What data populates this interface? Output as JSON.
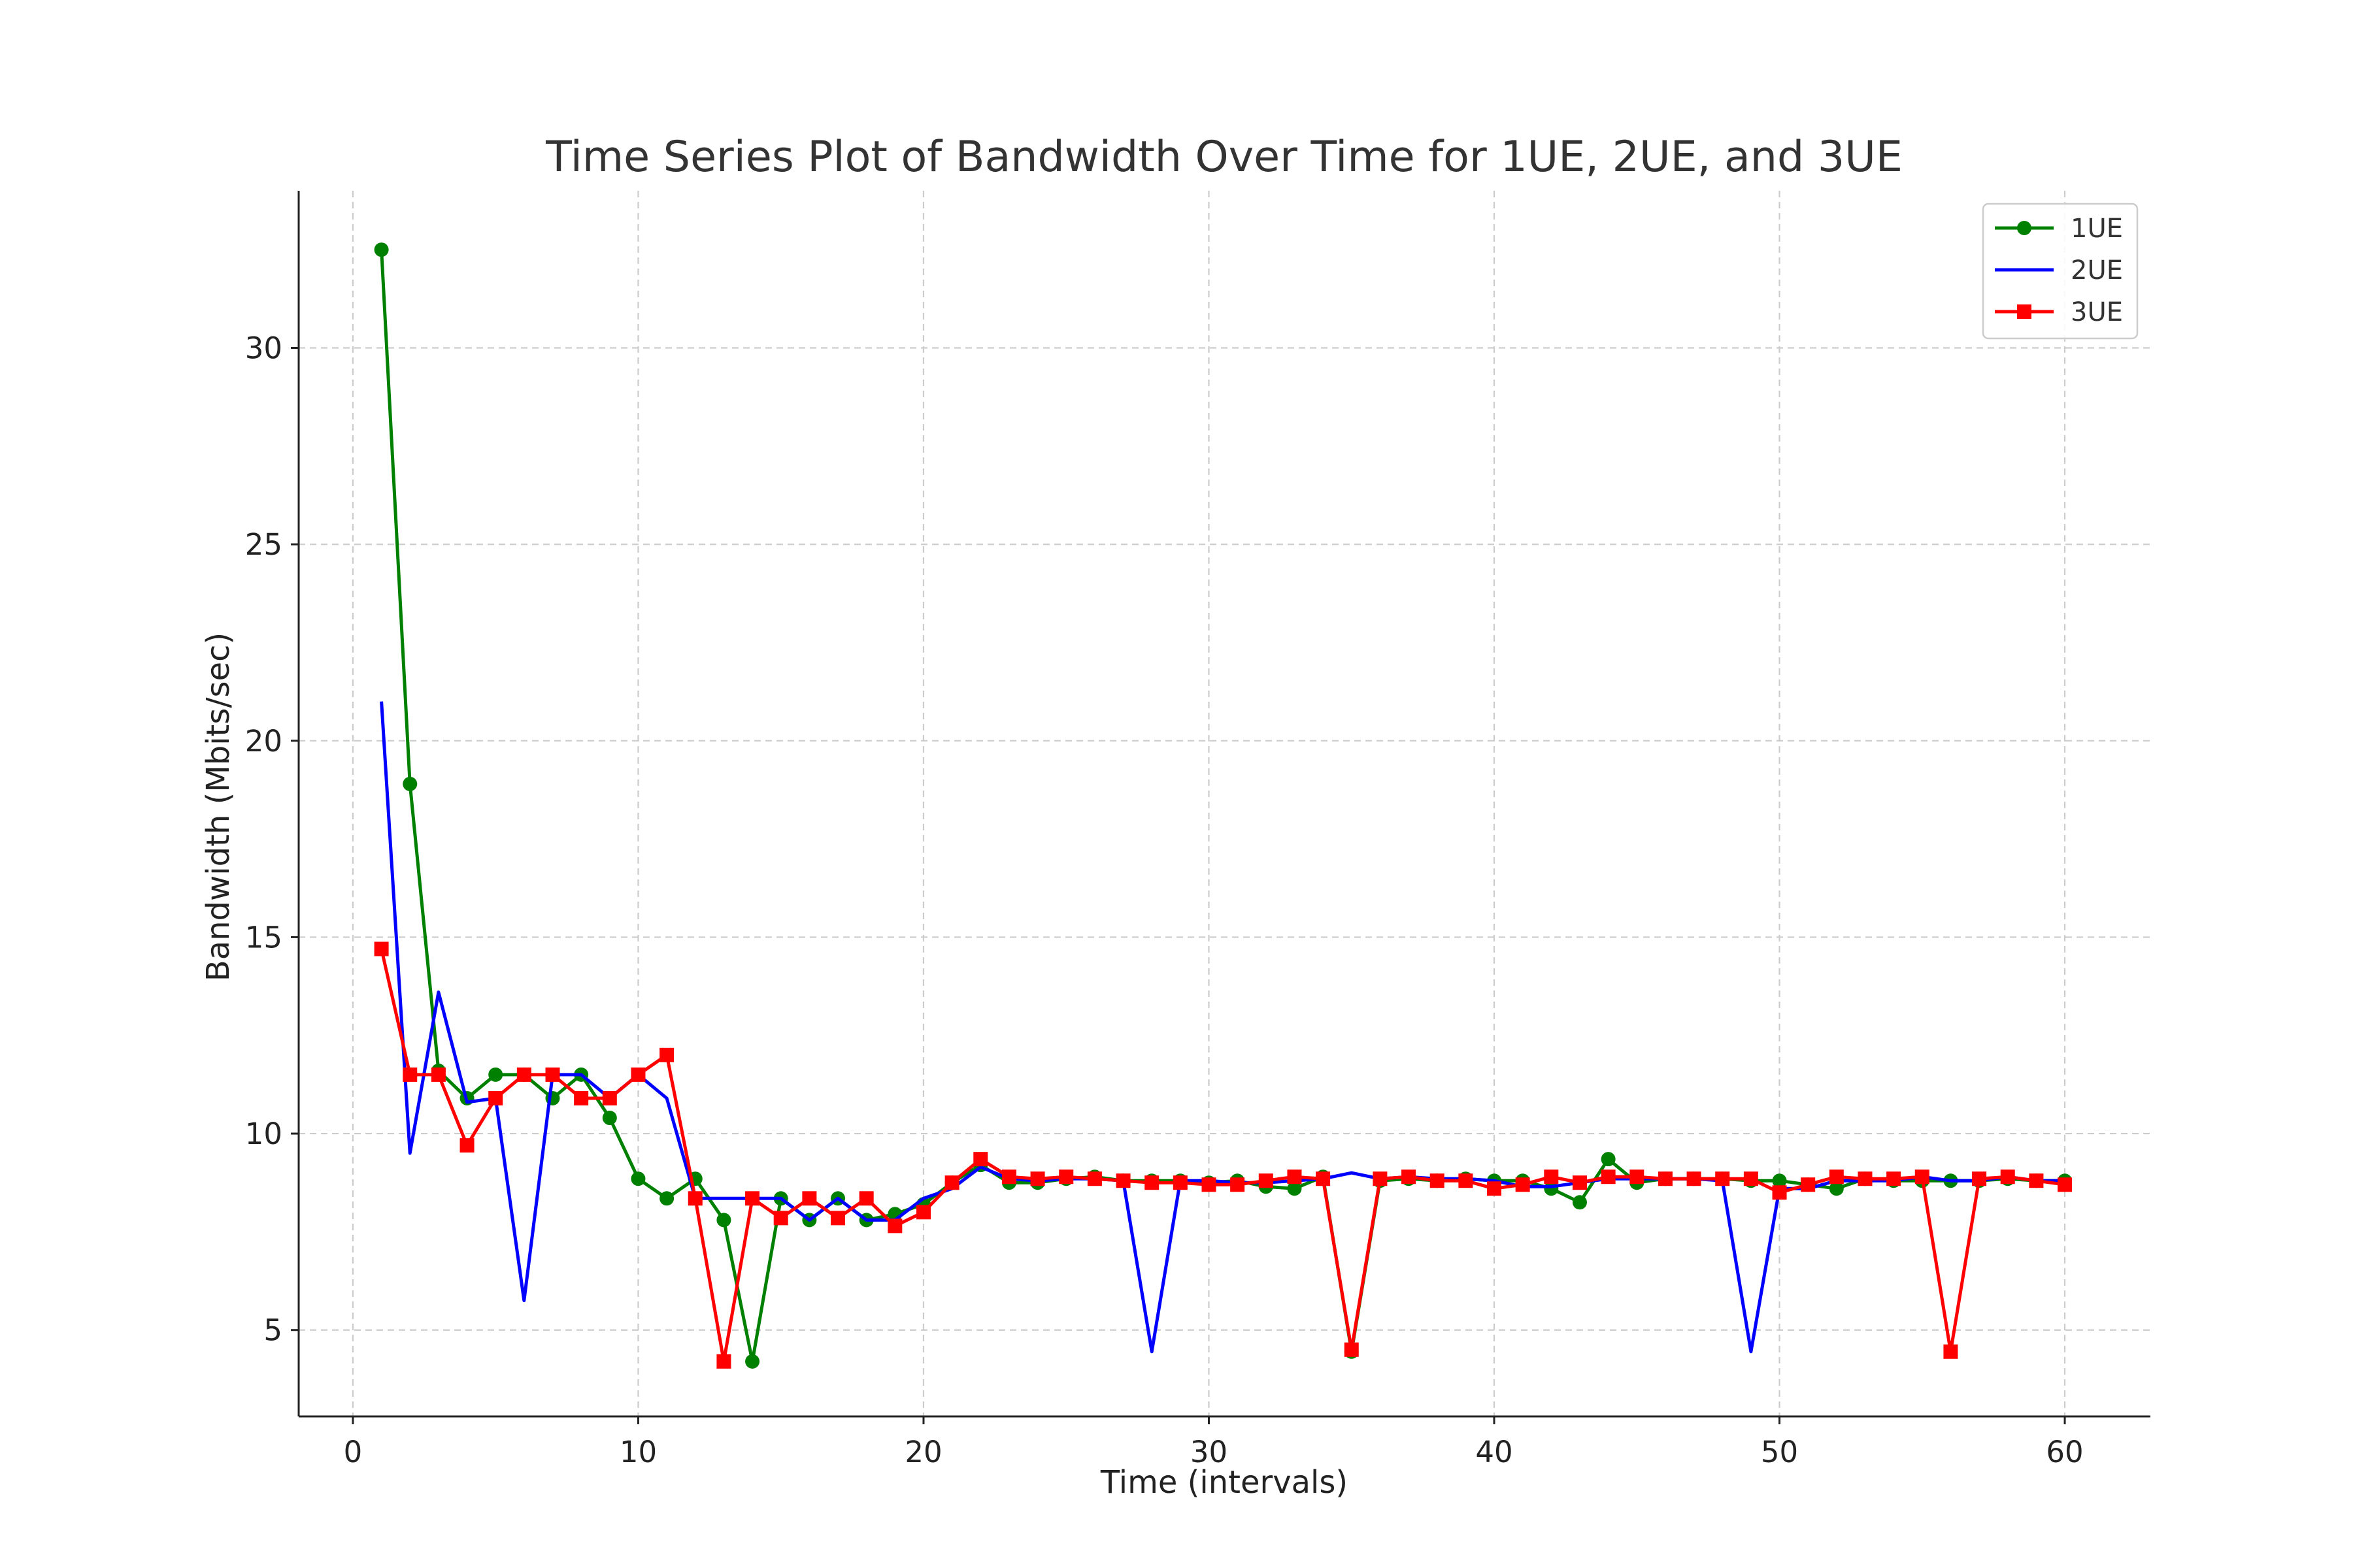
{
  "chart_data": {
    "type": "line",
    "title": "Time Series Plot of Bandwidth Over Time for 1UE, 2UE, and 3UE",
    "xlabel": "Time (intervals)",
    "ylabel": "Bandwidth (Mbits/sec)",
    "xlim": [
      -1.9,
      63.0
    ],
    "ylim": [
      2.8,
      34.0
    ],
    "xticks": [
      0,
      10,
      20,
      30,
      40,
      50,
      60
    ],
    "yticks": [
      5,
      10,
      15,
      20,
      25,
      30
    ],
    "grid": true,
    "legend_position": "top-right",
    "x": [
      1,
      2,
      3,
      4,
      5,
      6,
      7,
      8,
      9,
      10,
      11,
      12,
      13,
      14,
      15,
      16,
      17,
      18,
      19,
      20,
      21,
      22,
      23,
      24,
      25,
      26,
      27,
      28,
      29,
      30,
      31,
      32,
      33,
      34,
      35,
      36,
      37,
      38,
      39,
      40,
      41,
      42,
      43,
      44,
      45,
      46,
      47,
      48,
      49,
      50,
      51,
      52,
      53,
      54,
      55,
      56,
      57,
      58,
      59,
      60
    ],
    "series": [
      {
        "name": "1UE",
        "color": "#008000",
        "marker": "circle",
        "values": [
          32.5,
          18.9,
          11.6,
          10.9,
          11.5,
          11.5,
          10.9,
          11.5,
          10.4,
          8.85,
          8.35,
          8.85,
          7.8,
          4.2,
          8.35,
          7.8,
          8.35,
          7.8,
          7.95,
          8.2,
          8.75,
          9.2,
          8.75,
          8.75,
          8.85,
          8.9,
          8.8,
          8.8,
          8.8,
          8.75,
          8.8,
          8.65,
          8.6,
          8.9,
          4.45,
          8.8,
          8.85,
          8.8,
          8.85,
          8.8,
          8.8,
          8.6,
          8.25,
          9.35,
          8.75,
          8.85,
          8.85,
          8.85,
          8.8,
          8.8,
          8.7,
          8.6,
          8.85,
          8.8,
          8.8,
          8.8,
          8.8,
          8.85,
          8.8,
          8.8
        ]
      },
      {
        "name": "2UE",
        "color": "#0000ff",
        "marker": "none",
        "values": [
          21.0,
          9.5,
          13.6,
          10.8,
          10.9,
          5.75,
          11.5,
          11.5,
          10.9,
          11.5,
          10.9,
          8.35,
          8.35,
          8.35,
          8.35,
          7.8,
          8.35,
          7.8,
          7.8,
          8.35,
          8.6,
          9.15,
          8.85,
          8.8,
          8.85,
          8.85,
          8.8,
          4.45,
          8.8,
          8.8,
          8.75,
          8.75,
          8.8,
          8.85,
          9.0,
          8.85,
          8.9,
          8.85,
          8.85,
          8.8,
          8.65,
          8.65,
          8.75,
          8.85,
          8.85,
          8.85,
          8.85,
          8.8,
          4.45,
          8.6,
          8.6,
          8.8,
          8.8,
          8.8,
          8.9,
          8.8,
          8.8,
          8.9,
          8.8,
          8.8
        ]
      },
      {
        "name": "3UE",
        "color": "#ff0000",
        "marker": "square",
        "values": [
          14.7,
          11.5,
          11.5,
          9.7,
          10.9,
          11.5,
          11.5,
          10.9,
          10.9,
          11.5,
          12.0,
          8.35,
          4.2,
          8.35,
          7.85,
          8.35,
          7.85,
          8.35,
          7.65,
          8.0,
          8.75,
          9.35,
          8.9,
          8.85,
          8.9,
          8.85,
          8.8,
          8.75,
          8.75,
          8.7,
          8.7,
          8.8,
          8.9,
          8.85,
          4.5,
          8.85,
          8.9,
          8.8,
          8.8,
          8.6,
          8.7,
          8.9,
          8.75,
          8.9,
          8.9,
          8.85,
          8.85,
          8.85,
          8.85,
          8.5,
          8.7,
          8.9,
          8.85,
          8.85,
          8.9,
          4.45,
          8.85,
          8.9,
          8.8,
          8.7
        ]
      }
    ]
  }
}
